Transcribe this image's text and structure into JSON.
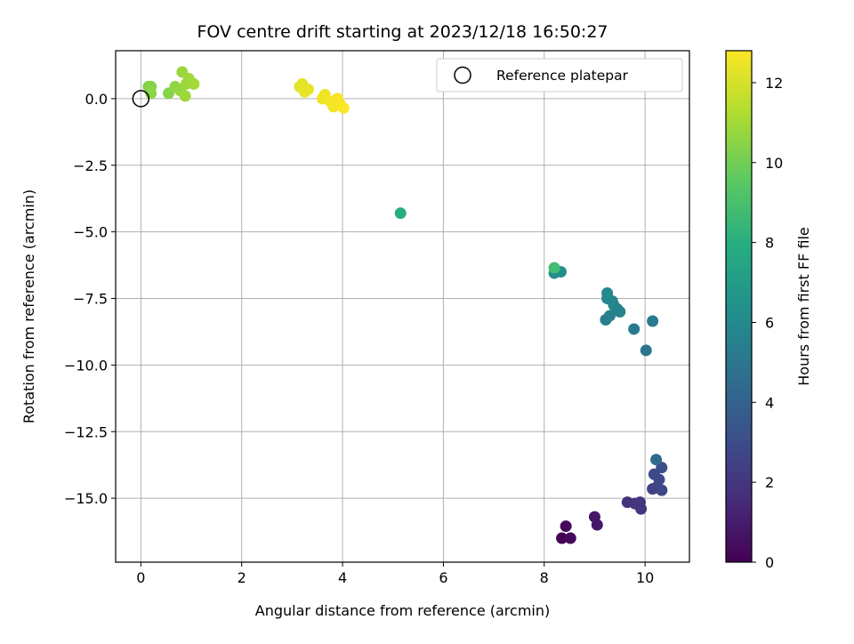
{
  "chart_data": {
    "type": "scatter",
    "title": "FOV centre drift starting at 2023/12/18 16:50:27",
    "xlabel": "Angular distance from reference (arcmin)",
    "ylabel": "Rotation from reference (arcmin)",
    "xlim": [
      -0.5,
      10.88
    ],
    "ylim": [
      -17.4,
      1.8
    ],
    "xticks": [
      0,
      2,
      4,
      6,
      8,
      10
    ],
    "xtick_labels": [
      "0",
      "2",
      "4",
      "6",
      "8",
      "10"
    ],
    "yticks": [
      0.0,
      -2.5,
      -5.0,
      -7.5,
      -10.0,
      -12.5,
      -15.0
    ],
    "ytick_labels": [
      "0.0",
      "−2.5",
      "−5.0",
      "−7.5",
      "−10.0",
      "−12.5",
      "−15.0"
    ],
    "grid": true,
    "legend": {
      "position": "top-right",
      "entries": [
        "Reference platepar"
      ]
    },
    "reference_point": {
      "x": 0,
      "y": 0,
      "label": "Reference platepar"
    },
    "colorbar": {
      "label": "Hours from first FF file",
      "colormap": "viridis",
      "range": [
        0,
        12.8
      ],
      "ticks": [
        0,
        2,
        4,
        6,
        8,
        10,
        12
      ],
      "tick_labels": [
        "0",
        "2",
        "4",
        "6",
        "8",
        "10",
        "12"
      ]
    },
    "points": [
      {
        "x": 8.35,
        "y": -16.5,
        "hours": 0.1
      },
      {
        "x": 8.52,
        "y": -16.5,
        "hours": 0.2
      },
      {
        "x": 8.43,
        "y": -16.05,
        "hours": 0.3
      },
      {
        "x": 9.0,
        "y": -15.7,
        "hours": 0.8
      },
      {
        "x": 9.05,
        "y": -16.0,
        "hours": 0.8
      },
      {
        "x": 9.65,
        "y": -15.15,
        "hours": 1.8
      },
      {
        "x": 9.8,
        "y": -15.2,
        "hours": 1.9
      },
      {
        "x": 9.92,
        "y": -15.4,
        "hours": 2.0
      },
      {
        "x": 9.9,
        "y": -15.15,
        "hours": 2.0
      },
      {
        "x": 10.15,
        "y": -14.65,
        "hours": 2.5
      },
      {
        "x": 10.22,
        "y": -14.6,
        "hours": 2.6
      },
      {
        "x": 10.33,
        "y": -14.7,
        "hours": 2.7
      },
      {
        "x": 10.28,
        "y": -14.3,
        "hours": 2.8
      },
      {
        "x": 10.18,
        "y": -14.1,
        "hours": 2.9
      },
      {
        "x": 10.33,
        "y": -13.85,
        "hours": 3.0
      },
      {
        "x": 10.22,
        "y": -13.55,
        "hours": 4.4
      },
      {
        "x": 10.02,
        "y": -9.45,
        "hours": 5.0
      },
      {
        "x": 9.78,
        "y": -8.65,
        "hours": 5.2
      },
      {
        "x": 10.15,
        "y": -8.35,
        "hours": 5.3
      },
      {
        "x": 9.22,
        "y": -8.3,
        "hours": 5.4
      },
      {
        "x": 9.3,
        "y": -8.15,
        "hours": 5.5
      },
      {
        "x": 9.5,
        "y": -8.0,
        "hours": 5.6
      },
      {
        "x": 9.38,
        "y": -7.75,
        "hours": 5.7
      },
      {
        "x": 9.45,
        "y": -7.9,
        "hours": 5.7
      },
      {
        "x": 9.25,
        "y": -7.5,
        "hours": 5.9
      },
      {
        "x": 9.35,
        "y": -7.6,
        "hours": 5.9
      },
      {
        "x": 9.25,
        "y": -7.3,
        "hours": 6.0
      },
      {
        "x": 8.2,
        "y": -6.55,
        "hours": 6.3
      },
      {
        "x": 8.33,
        "y": -6.5,
        "hours": 6.3
      },
      {
        "x": 8.2,
        "y": -6.35,
        "hours": 8.8
      },
      {
        "x": 5.15,
        "y": -4.3,
        "hours": 8.0
      },
      {
        "x": 0.15,
        "y": 0.45,
        "hours": 10.3
      },
      {
        "x": 0.2,
        "y": 0.45,
        "hours": 10.4
      },
      {
        "x": 0.2,
        "y": 0.2,
        "hours": 10.5
      },
      {
        "x": 0.55,
        "y": 0.2,
        "hours": 10.4
      },
      {
        "x": 0.68,
        "y": 0.45,
        "hours": 10.6
      },
      {
        "x": 0.78,
        "y": 0.3,
        "hours": 10.7
      },
      {
        "x": 0.82,
        "y": 1.0,
        "hours": 10.8
      },
      {
        "x": 0.9,
        "y": 0.55,
        "hours": 10.8
      },
      {
        "x": 0.88,
        "y": 0.1,
        "hours": 10.9
      },
      {
        "x": 0.95,
        "y": 0.75,
        "hours": 10.9
      },
      {
        "x": 1.05,
        "y": 0.55,
        "hours": 11.0
      },
      {
        "x": 3.15,
        "y": 0.45,
        "hours": 12.2
      },
      {
        "x": 3.2,
        "y": 0.55,
        "hours": 12.3
      },
      {
        "x": 3.25,
        "y": 0.25,
        "hours": 12.4
      },
      {
        "x": 3.32,
        "y": 0.35,
        "hours": 12.4
      },
      {
        "x": 3.6,
        "y": 0.0,
        "hours": 12.5
      },
      {
        "x": 3.65,
        "y": 0.15,
        "hours": 12.5
      },
      {
        "x": 3.75,
        "y": -0.1,
        "hours": 12.6
      },
      {
        "x": 3.82,
        "y": -0.3,
        "hours": 12.6
      },
      {
        "x": 3.9,
        "y": 0.0,
        "hours": 12.7
      },
      {
        "x": 3.95,
        "y": -0.2,
        "hours": 12.7
      },
      {
        "x": 4.02,
        "y": -0.35,
        "hours": 12.8
      }
    ]
  }
}
